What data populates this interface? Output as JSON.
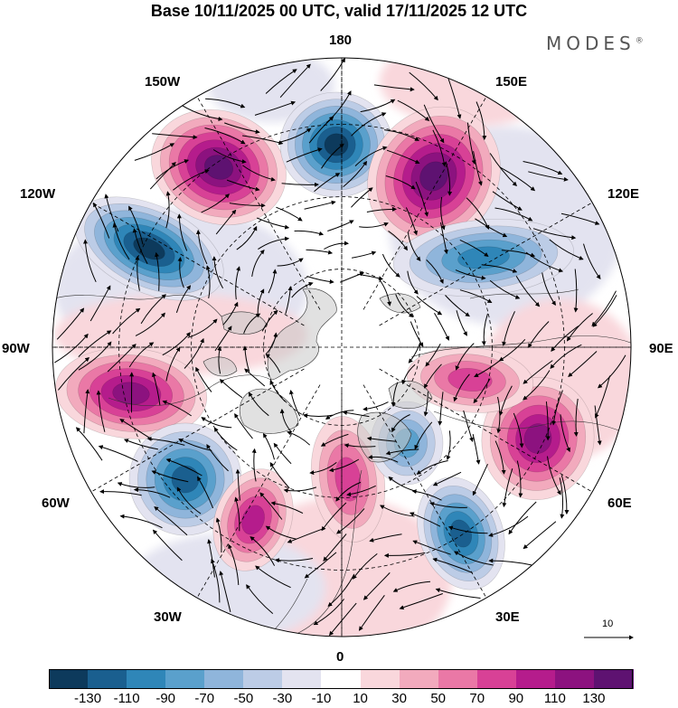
{
  "title": "Base 10/11/2025 00 UTC, valid 17/11/2025 12 UTC",
  "brand": "MODES",
  "brand_mark": "®",
  "longitude_labels": {
    "lon_0": "0",
    "lon_30E": "30E",
    "lon_60E": "60E",
    "lon_90E": "90E",
    "lon_120E": "120E",
    "lon_150E": "150E",
    "lon_180": "180",
    "lon_150W": "150W",
    "lon_120W": "120W",
    "lon_90W": "90W",
    "lon_60W": "60W",
    "lon_30W": "30W"
  },
  "reference_vector": {
    "label": "10"
  },
  "colorbar": {
    "ticks": [
      "-130",
      "-110",
      "-90",
      "-70",
      "-50",
      "-30",
      "-10",
      "10",
      "30",
      "50",
      "70",
      "90",
      "110",
      "130"
    ],
    "colors": [
      "#0d3a5c",
      "#1a5f8f",
      "#2f86b8",
      "#5aa0cc",
      "#8fb5db",
      "#bccce6",
      "#e3e3f0",
      "#ffffff",
      "#f9d7dc",
      "#f2aabd",
      "#ea78a6",
      "#d84196",
      "#b51c8c",
      "#8c127f",
      "#5e1271"
    ]
  },
  "anomaly_centers": [
    {
      "name": "high-150W",
      "value": 130
    },
    {
      "name": "low-180",
      "value": -130
    },
    {
      "name": "high-150E",
      "value": 120
    },
    {
      "name": "low-120W",
      "value": -120
    },
    {
      "name": "low-120E",
      "value": -90
    },
    {
      "name": "high-90W",
      "value": 110
    },
    {
      "name": "high-60E",
      "value": 100
    },
    {
      "name": "high-90E",
      "value": 70
    },
    {
      "name": "low-60W",
      "value": -110
    },
    {
      "name": "high-30W",
      "value": 80
    },
    {
      "name": "high-0",
      "value": 70
    },
    {
      "name": "low-30E",
      "value": -100
    },
    {
      "name": "low-15E",
      "value": -70
    }
  ]
}
